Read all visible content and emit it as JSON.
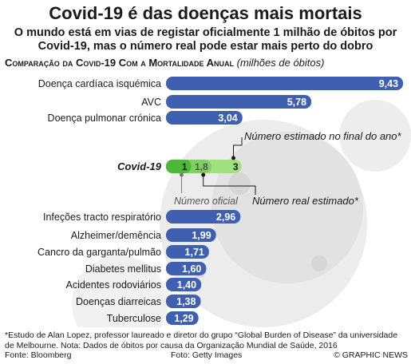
{
  "header": {
    "title": "Covid-19 é das doenças mais mortais",
    "subtitle_line1": "O mundo está em vias de registar oficialmente 1 milhão de óbitos por",
    "subtitle_line2": "Covid-19, mas o número real pode estar mais perto do dobro",
    "section_title": "Comparação da Covid-19 Com a Mortalidade Anual",
    "section_unit": "(milhões de óbitos)"
  },
  "colors": {
    "bar": "#3f5fb0",
    "covid_light": "#9fe07f",
    "covid_dark": "#4fb83a",
    "background_virus": "#e8e8e8"
  },
  "chart_data": {
    "type": "bar",
    "orientation": "horizontal",
    "categories": [
      "Doença cardíaca isquémica",
      "AVC",
      "Doença pulmonar crónica",
      "Infeções tracto respiratório",
      "Alzheimer/demência",
      "Cancro da garganta/pulmão",
      "Diabetes mellitus",
      "Acidentes rodoviários",
      "Doenças diarreicas",
      "Tuberculose"
    ],
    "values": [
      9.43,
      5.78,
      3.04,
      2.96,
      1.99,
      1.71,
      1.6,
      1.4,
      1.38,
      1.29
    ],
    "value_labels": [
      "9,43",
      "5,78",
      "3,04",
      "2,96",
      "1,99",
      "1,71",
      "1,60",
      "1,40",
      "1,38",
      "1,29"
    ],
    "covid": {
      "label": "Covid-19",
      "official": 1,
      "estimated_real": 1.8,
      "estimated_year_end": 3,
      "official_label": "1",
      "estimated_real_label": "1,8",
      "year_end_label": "3",
      "annotation_year_end": "Número estimado no final do ano*",
      "annotation_real": "Número real estimado*",
      "annotation_official": "Número oficial"
    }
  },
  "footer": {
    "note_line1": "*Estudo de Alan Lopez, professor laureado e diretor do grupo “Global Burden of Disease” da universidade",
    "note_line2": "de Melbourne. Nota: Dados de óbitos por causa da Organização Mundial de Saúde, 2016",
    "source": "Fonte: Bloomberg",
    "photo": "Foto: Getty Images",
    "copyright": "© GRAPHIC NEWS"
  }
}
